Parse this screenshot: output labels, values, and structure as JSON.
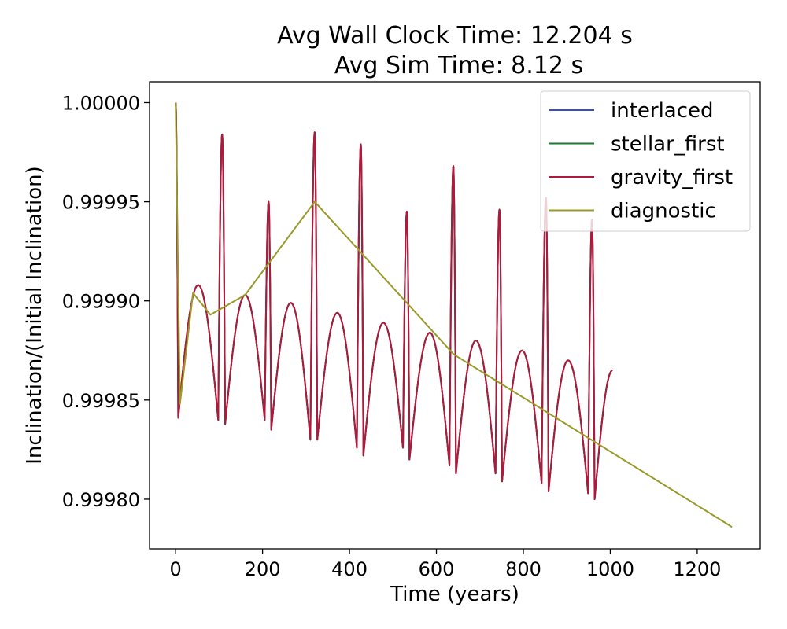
{
  "chart_data": {
    "type": "line",
    "title_lines": [
      "Avg Wall Clock Time: 12.204 s",
      "Avg Sim Time: 8.12 s"
    ],
    "xlabel": "Time (years)",
    "ylabel": "Inclination/(Initial Inclination)",
    "xlim": [
      -60,
      1345
    ],
    "ylim": [
      0.999775,
      1.0000105
    ],
    "xticks": [
      0,
      200,
      400,
      600,
      800,
      1000,
      1200
    ],
    "xtick_labels": [
      "0",
      "200",
      "400",
      "600",
      "800",
      "1000",
      "1200"
    ],
    "yticks": [
      0.9998,
      0.99985,
      0.9999,
      0.99995,
      1.0
    ],
    "ytick_labels": [
      "0.99980",
      "0.99985",
      "0.99990",
      "0.99995",
      "1.00000"
    ],
    "grid": false,
    "legend_position": "top-right",
    "oscillation": {
      "t_start": 0,
      "t_end": 1005,
      "period_years": 106,
      "dip_bottoms": [
        [
          6,
          0.999841
        ],
        [
          98,
          0.99984
        ],
        [
          114,
          0.999838
        ],
        [
          205,
          0.99984
        ],
        [
          220,
          0.999835
        ],
        [
          310,
          0.99983
        ],
        [
          326,
          0.99983
        ],
        [
          417,
          0.999826
        ],
        [
          432,
          0.999822
        ],
        [
          523,
          0.999826
        ],
        [
          538,
          0.99982
        ],
        [
          630,
          0.999817
        ],
        [
          645,
          0.999813
        ],
        [
          736,
          0.999813
        ],
        [
          751,
          0.999809
        ],
        [
          842,
          0.999808
        ],
        [
          858,
          0.999804
        ],
        [
          949,
          0.999803
        ],
        [
          964,
          0.9998
        ]
      ],
      "spike_tops": [
        [
          107,
          0.999984
        ],
        [
          214,
          0.99995
        ],
        [
          320,
          0.999985
        ],
        [
          426,
          0.999979
        ],
        [
          532,
          0.999945
        ],
        [
          639,
          0.999968
        ],
        [
          745,
          0.999946
        ],
        [
          852,
          0.999952
        ],
        [
          958,
          0.999941
        ]
      ],
      "hump_tops": [
        [
          52,
          0.999908
        ],
        [
          160,
          0.999903
        ],
        [
          265,
          0.999899
        ],
        [
          372,
          0.999894
        ],
        [
          478,
          0.999889
        ],
        [
          585,
          0.999884
        ],
        [
          691,
          0.99988
        ],
        [
          797,
          0.999875
        ],
        [
          903,
          0.99987
        ]
      ],
      "end_value": [
        1005,
        0.999865
      ]
    },
    "series": [
      {
        "name": "interlaced",
        "color": "#3b4cc0",
        "style": "oscillation"
      },
      {
        "name": "stellar_first",
        "color": "#1a7a2e",
        "style": "oscillation"
      },
      {
        "name": "gravity_first",
        "color": "#b2183b",
        "style": "oscillation"
      },
      {
        "name": "diagnostic",
        "color": "#9a9a2a",
        "style": "points",
        "x": [
          0,
          10,
          40,
          80,
          160,
          320,
          640,
          1280
        ],
        "y": [
          1.0,
          0.999848,
          0.999904,
          0.999893,
          0.999903,
          0.99995,
          0.999873,
          0.999786
        ]
      }
    ]
  }
}
